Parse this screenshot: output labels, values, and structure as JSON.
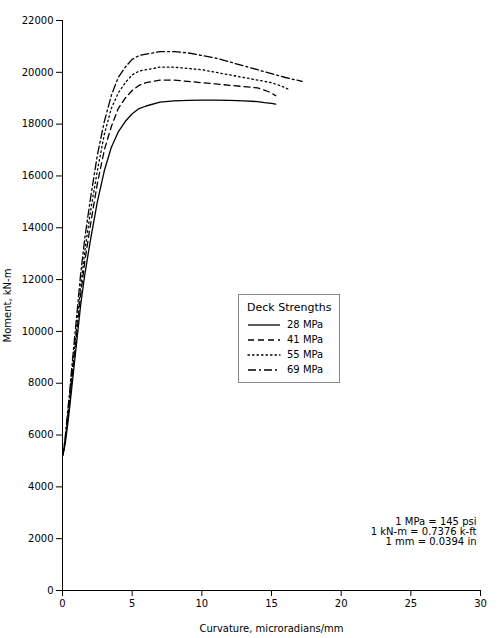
{
  "chart_data": {
    "type": "line",
    "xlabel": "Curvature, microradians/mm",
    "ylabel": "Moment, kN-m",
    "xlim": [
      0,
      30
    ],
    "ylim": [
      0,
      22000
    ],
    "xticks": [
      0,
      5,
      10,
      15,
      20,
      25,
      30
    ],
    "yticks": [
      0,
      2000,
      4000,
      6000,
      8000,
      10000,
      12000,
      14000,
      16000,
      18000,
      20000,
      22000
    ],
    "legend_title": "Deck Strengths",
    "legend": "center",
    "annotation": "1 MPa = 145 psi\n1 kN-m = 0.7376 k-ft\n1 mm = 0.0394 in",
    "series": [
      {
        "name": "28 MPa",
        "line_style": "solid",
        "color": "#000000",
        "x": [
          0.0,
          0.1,
          0.2,
          0.35,
          0.5,
          0.7,
          1.0,
          1.3,
          1.6,
          2.0,
          2.5,
          3.0,
          3.5,
          4.0,
          4.5,
          5.0,
          5.5,
          6.0,
          7.0,
          8.0,
          9.0,
          10.0,
          11.0,
          12.0,
          13.0,
          14.0,
          14.5,
          15.0,
          15.3
        ],
        "values": [
          5200,
          5400,
          5700,
          6300,
          7000,
          8000,
          9500,
          11000,
          12200,
          13500,
          15000,
          16200,
          17100,
          17700,
          18100,
          18400,
          18600,
          18700,
          18850,
          18900,
          18920,
          18930,
          18930,
          18920,
          18900,
          18870,
          18830,
          18800,
          18770
        ]
      },
      {
        "name": "41 MPa",
        "line_style": "dashed",
        "color": "#000000",
        "x": [
          0.0,
          0.1,
          0.2,
          0.35,
          0.5,
          0.7,
          1.0,
          1.3,
          1.6,
          2.0,
          2.5,
          3.0,
          3.5,
          4.0,
          4.5,
          5.0,
          5.5,
          6.0,
          7.0,
          8.0,
          9.0,
          10.0,
          11.0,
          12.0,
          13.0,
          14.0,
          14.8,
          15.3
        ],
        "values": [
          5200,
          5450,
          5800,
          6500,
          7200,
          8300,
          9800,
          11400,
          12700,
          14100,
          15700,
          17000,
          17900,
          18600,
          19000,
          19300,
          19500,
          19600,
          19700,
          19700,
          19650,
          19600,
          19550,
          19500,
          19450,
          19400,
          19250,
          19100
        ]
      },
      {
        "name": "55 MPa",
        "line_style": "dotted",
        "color": "#000000",
        "x": [
          0.0,
          0.1,
          0.2,
          0.35,
          0.5,
          0.7,
          1.0,
          1.3,
          1.6,
          2.0,
          2.5,
          3.0,
          3.5,
          4.0,
          4.5,
          5.0,
          5.5,
          6.0,
          7.0,
          8.0,
          9.0,
          10.0,
          11.0,
          12.0,
          13.0,
          14.0,
          15.0,
          15.8,
          16.2
        ],
        "values": [
          5200,
          5450,
          5850,
          6600,
          7400,
          8500,
          10100,
          11700,
          13100,
          14600,
          16200,
          17600,
          18600,
          19200,
          19600,
          19900,
          20050,
          20100,
          20200,
          20200,
          20150,
          20100,
          20000,
          19900,
          19800,
          19700,
          19600,
          19450,
          19350
        ]
      },
      {
        "name": "69 MPa",
        "line_style": "dashdot",
        "color": "#000000",
        "x": [
          0.0,
          0.1,
          0.2,
          0.35,
          0.5,
          0.7,
          1.0,
          1.3,
          1.6,
          2.0,
          2.5,
          3.0,
          3.5,
          4.0,
          4.5,
          5.0,
          5.5,
          6.0,
          7.0,
          8.0,
          9.0,
          10.0,
          11.0,
          12.0,
          13.0,
          14.0,
          15.0,
          16.0,
          16.8,
          17.2
        ],
        "values": [
          5200,
          5500,
          5950,
          6800,
          7600,
          8800,
          10500,
          12200,
          13600,
          15100,
          16800,
          18100,
          19100,
          19800,
          20200,
          20500,
          20650,
          20700,
          20800,
          20800,
          20750,
          20650,
          20550,
          20400,
          20250,
          20100,
          19950,
          19800,
          19700,
          19650
        ]
      }
    ]
  }
}
